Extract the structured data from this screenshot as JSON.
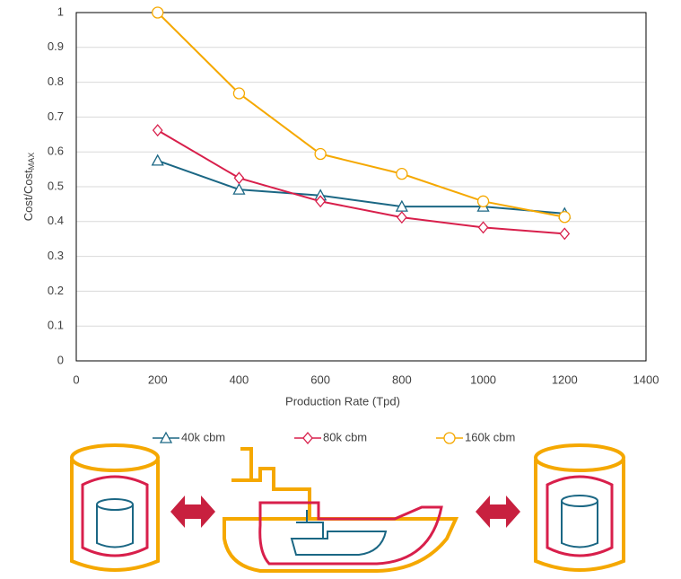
{
  "chart_data": {
    "type": "line",
    "xlabel": "Production Rate (Tpd)",
    "ylabel": "Cost/Cost",
    "ylabel_subscript": "MAX",
    "x": [
      200,
      400,
      600,
      800,
      1000,
      1200
    ],
    "series": [
      {
        "name": "40k cbm",
        "color": "#1b6784",
        "marker": "triangle",
        "values": [
          0.575,
          0.492,
          0.475,
          0.443,
          0.443,
          0.423
        ]
      },
      {
        "name": "80k cbm",
        "color": "#d81f4b",
        "marker": "diamond",
        "values": [
          0.662,
          0.525,
          0.458,
          0.412,
          0.383,
          0.365
        ]
      },
      {
        "name": "160k cbm",
        "color": "#f5a800",
        "marker": "circle",
        "values": [
          1.0,
          0.768,
          0.594,
          0.537,
          0.458,
          0.413
        ]
      }
    ],
    "xlim": [
      0,
      1400
    ],
    "xticks": [
      0,
      200,
      400,
      600,
      800,
      1000,
      1200,
      1400
    ],
    "ylim": [
      0,
      1
    ],
    "yticks": [
      0,
      0.1,
      0.2,
      0.3,
      0.4,
      0.5,
      0.6,
      0.7,
      0.8,
      0.9,
      1
    ],
    "grid": true,
    "legend": "bottom"
  }
}
